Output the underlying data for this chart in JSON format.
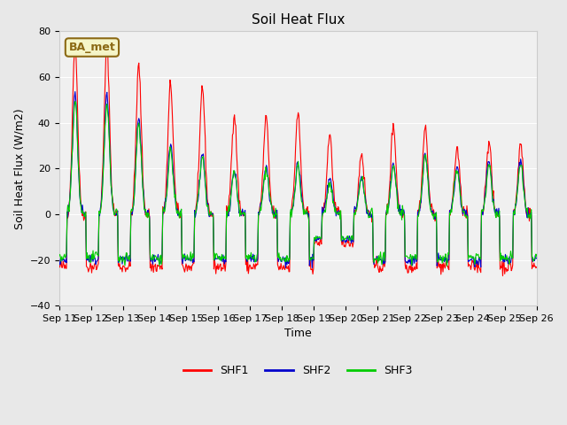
{
  "title": "Soil Heat Flux",
  "ylabel": "Soil Heat Flux (W/m2)",
  "xlabel": "Time",
  "ylim": [
    -40,
    80
  ],
  "bg_color": "#e8e8e8",
  "plot_bg_color": "#f0f0f0",
  "annotation_text": "BA_met",
  "annotation_bg": "#f5f5c8",
  "annotation_border": "#8b6914",
  "legend_labels": [
    "SHF1",
    "SHF2",
    "SHF3"
  ],
  "legend_colors": [
    "#ff0000",
    "#0000cc",
    "#00cc00"
  ],
  "line_colors": [
    "#ff0000",
    "#0000cc",
    "#00cc00"
  ],
  "xtick_labels": [
    "Sep 11",
    "Sep 12",
    "Sep 13",
    "Sep 14",
    "Sep 15",
    "Sep 16",
    "Sep 17",
    "Sep 18",
    "Sep 19",
    "Sep 20",
    "Sep 21",
    "Sep 22",
    "Sep 23",
    "Sep 24",
    "Sep 25",
    "Sep 26"
  ],
  "ytick_values": [
    -40,
    -20,
    0,
    20,
    40,
    60,
    80
  ],
  "n_days": 15,
  "start_day": 11,
  "points_per_day": 48,
  "scale1": [
    75,
    75,
    65,
    57,
    56,
    44,
    42,
    44,
    35,
    27,
    39,
    38,
    29,
    32,
    31
  ],
  "scale2": [
    53,
    53,
    42,
    30,
    27,
    19,
    21,
    22,
    16,
    17,
    22,
    26,
    21,
    24,
    23
  ],
  "scale3": [
    50,
    49,
    40,
    28,
    25,
    18,
    20,
    21,
    13,
    16,
    21,
    25,
    20,
    22,
    22
  ],
  "night_level1": -23,
  "night_level2": -20,
  "night_level3": -19,
  "noise_scale1": 1.5,
  "noise_scale2": 1.2,
  "noise_scale3": 1.2
}
